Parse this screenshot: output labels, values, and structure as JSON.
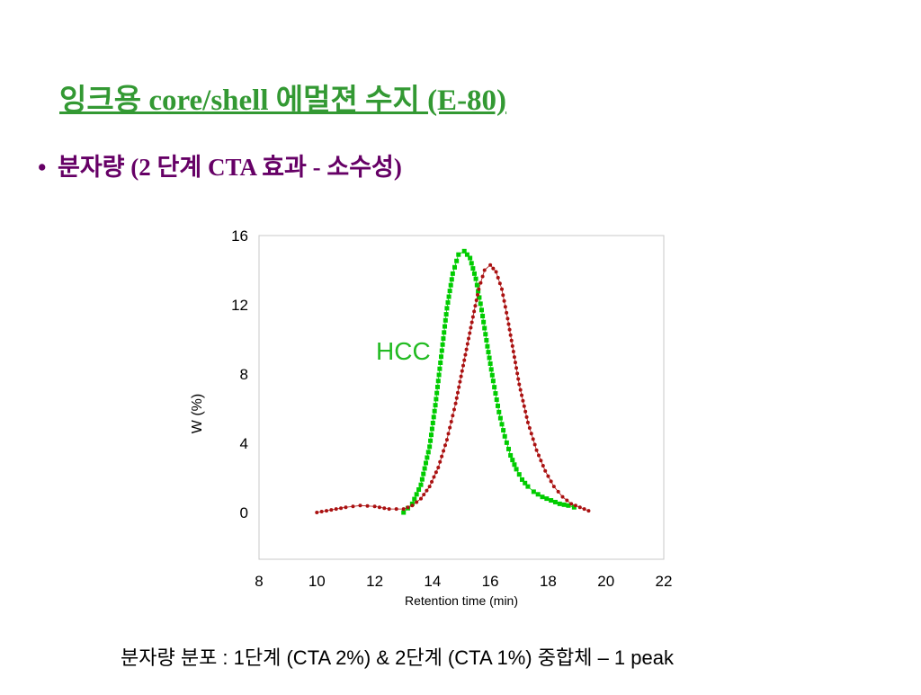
{
  "slide": {
    "title": "잉크용 core/shell 에멀젼 수지 (E-80)",
    "bullet_marker": "•",
    "bullet": "분자량 (2 단계 CTA 효과 - 소수성)",
    "caption": "분자량 분포 : 1단계 (CTA 2%) & 2단계 (CTA 1%) 중합체 – 1 peak"
  },
  "colors": {
    "title": "#339933",
    "bullet": "#660066",
    "series_green": "#00cc00",
    "series_red": "#aa1111",
    "hcc_label": "#22bb22"
  },
  "chart_data": {
    "type": "line",
    "xlabel": "Retention time (min)",
    "ylabel": "W (%)",
    "xlim": [
      8,
      22
    ],
    "ylim": [
      0,
      16
    ],
    "xticks": [
      "8",
      "10",
      "12",
      "14",
      "16",
      "18",
      "20",
      "22"
    ],
    "yticks": [
      "0",
      "4",
      "8",
      "12",
      "16"
    ],
    "annotations": [
      {
        "text": "HCC"
      }
    ],
    "series": [
      {
        "color": "#00cc00",
        "marker": "square",
        "x": [
          13.0,
          13.3,
          13.6,
          13.9,
          14.1,
          14.3,
          14.5,
          14.7,
          14.9,
          15.1,
          15.3,
          15.5,
          15.7,
          15.9,
          16.1,
          16.3,
          16.5,
          16.7,
          16.9,
          17.1,
          17.3,
          17.5,
          17.8,
          18.1,
          18.4,
          18.7,
          18.9
        ],
        "y": [
          0.0,
          0.5,
          1.6,
          3.8,
          6.2,
          9.0,
          11.8,
          13.8,
          14.9,
          15.1,
          14.7,
          13.5,
          11.7,
          9.6,
          7.6,
          5.8,
          4.4,
          3.3,
          2.5,
          1.9,
          1.5,
          1.2,
          0.9,
          0.7,
          0.5,
          0.4,
          0.3
        ]
      },
      {
        "color": "#aa1111",
        "marker": "circle",
        "x": [
          10.0,
          10.5,
          11.0,
          11.5,
          12.0,
          12.5,
          13.0,
          13.3,
          13.6,
          13.9,
          14.2,
          14.5,
          14.8,
          15.1,
          15.4,
          15.6,
          15.8,
          16.0,
          16.2,
          16.4,
          16.6,
          16.8,
          17.0,
          17.3,
          17.6,
          17.9,
          18.2,
          18.5,
          18.8,
          19.1,
          19.4
        ],
        "y": [
          0.0,
          0.15,
          0.3,
          0.4,
          0.35,
          0.2,
          0.2,
          0.4,
          0.8,
          1.5,
          2.6,
          4.2,
          6.3,
          8.8,
          11.3,
          12.9,
          14.0,
          14.3,
          13.9,
          12.9,
          11.2,
          9.3,
          7.4,
          5.2,
          3.6,
          2.4,
          1.5,
          0.9,
          0.5,
          0.3,
          0.1
        ]
      }
    ]
  }
}
